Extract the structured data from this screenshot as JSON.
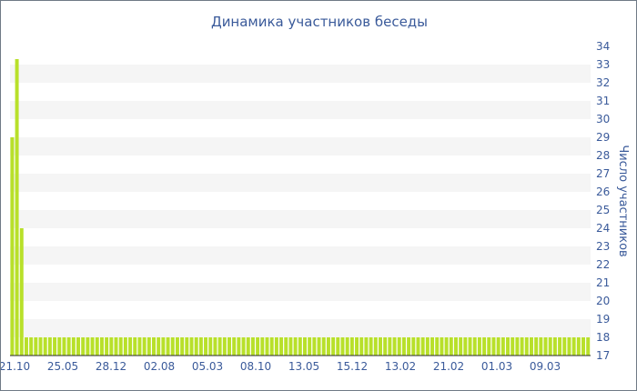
{
  "chart_data": {
    "type": "bar",
    "title": "Динамика участников беседы",
    "xlabel": "",
    "ylabel": "Число участников",
    "ylim": [
      17,
      34
    ],
    "y_axis_side": "right",
    "y_ticks": [
      17,
      18,
      19,
      20,
      21,
      22,
      23,
      24,
      25,
      26,
      27,
      28,
      29,
      30,
      31,
      32,
      33,
      34
    ],
    "x_tick_labels": [
      "21.10",
      "25.05",
      "28.12",
      "02.08",
      "05.03",
      "08.10",
      "13.05",
      "15.12",
      "13.02",
      "21.02",
      "01.03",
      "09.03"
    ],
    "grid": "alternating horizontal bands",
    "values": [
      29,
      33.3,
      24,
      18,
      18,
      18,
      18,
      18,
      18,
      18,
      18,
      18,
      18,
      18,
      18,
      18,
      18,
      18,
      18,
      18,
      18,
      18,
      18,
      18,
      18,
      18,
      18,
      18,
      18,
      18,
      18,
      18,
      18,
      18,
      18,
      18,
      18,
      18,
      18,
      18,
      18,
      18,
      18,
      18,
      18,
      18,
      18,
      18,
      18,
      18,
      18,
      18,
      18,
      18,
      18,
      18,
      18,
      18,
      18,
      18,
      18,
      18,
      18,
      18,
      18,
      18,
      18,
      18,
      18,
      18,
      18,
      18,
      18,
      18,
      18,
      18,
      18,
      18,
      18,
      18,
      18,
      18,
      18,
      18,
      18,
      18,
      18,
      18,
      18,
      18,
      18,
      18,
      18,
      18,
      18,
      18,
      18,
      18,
      18,
      18,
      18,
      18,
      18,
      18,
      18,
      18,
      18,
      18,
      18,
      18,
      18,
      18,
      18,
      18,
      18,
      18,
      18,
      18,
      18,
      18,
      18,
      18,
      18
    ],
    "bar_color": "#b8e02a",
    "text_color": "#3a5a9a",
    "band_color": "#f5f5f5"
  }
}
